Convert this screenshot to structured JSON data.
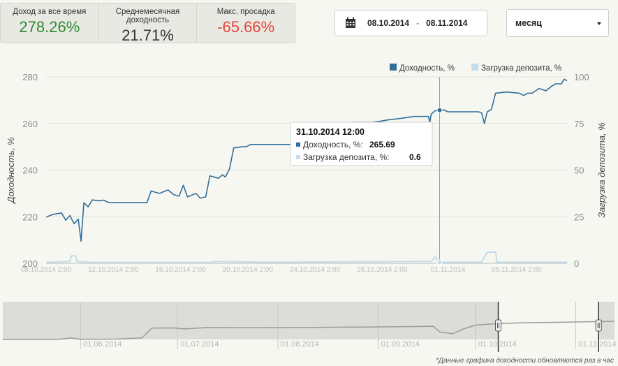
{
  "stats": [
    {
      "label": "Доход за все время",
      "value": "278.26%",
      "tone": "pos"
    },
    {
      "label": "Среднемесячная доходность",
      "value": "21.71%",
      "tone": "neu"
    },
    {
      "label": "Макс. просадка",
      "value": "-65.66%",
      "tone": "negv"
    }
  ],
  "date_range": {
    "start": "08.10.2014",
    "sep": "-",
    "end": "08.11.2014",
    "icon": "calendar-icon"
  },
  "period": {
    "selected": "месяц",
    "icon": "caret-down-icon"
  },
  "colors": {
    "yield": "#336e99",
    "load": "#c5dcea",
    "crosshair": "#4bb8d4",
    "positive": "#2f8a35",
    "negative": "#e0463a",
    "navigator": "#9a9a9a"
  },
  "chart_data": {
    "type": "line",
    "legend": [
      {
        "label": "Доходность, %",
        "color": "#336e99"
      },
      {
        "label": "Загрузка депозита, %",
        "color": "#c5dcea"
      }
    ],
    "legend_position": "top-right",
    "ylabel": "Доходность, %",
    "y2label": "Загрузка депозита, %",
    "ylim": [
      200,
      280
    ],
    "yticks": [
      200,
      220,
      240,
      260,
      280
    ],
    "y2lim": [
      0,
      100
    ],
    "y2ticks": [
      0,
      25,
      50,
      75,
      100
    ],
    "xlim": [
      "2014-10-08 02:00",
      "2014-11-08 02:00"
    ],
    "xticks": [
      "08.10.2014 2:00",
      "12.10.2014 2:00",
      "16.10.2014 2:00",
      "20.10.2014 2:00",
      "24.10.2014 2:00",
      "28.10.2014 2:00",
      "01.11.2014",
      "05.11.2014 2:00"
    ],
    "grid": true,
    "series": [
      {
        "name": "Доходность, %",
        "points": [
          [
            "2014-10-08 02:00",
            219.8
          ],
          [
            "2014-10-08 12:00",
            221.0
          ],
          [
            "2014-10-09 00:00",
            221.6
          ],
          [
            "2014-10-09 06:00",
            218.5
          ],
          [
            "2014-10-09 12:00",
            220.5
          ],
          [
            "2014-10-09 18:00",
            217.0
          ],
          [
            "2014-10-10 00:00",
            219.0
          ],
          [
            "2014-10-10 04:00",
            209.5
          ],
          [
            "2014-10-10 08:00",
            226.0
          ],
          [
            "2014-10-10 14:00",
            224.2
          ],
          [
            "2014-10-10 20:00",
            227.2
          ],
          [
            "2014-10-11 06:00",
            226.8
          ],
          [
            "2014-10-11 12:00",
            227.1
          ],
          [
            "2014-10-11 20:00",
            226.0
          ],
          [
            "2014-10-14 00:00",
            226.0
          ],
          [
            "2014-10-14 02:00",
            226.0
          ],
          [
            "2014-10-14 08:00",
            231.0
          ],
          [
            "2014-10-14 20:00",
            230.0
          ],
          [
            "2014-10-15 08:00",
            231.5
          ],
          [
            "2014-10-15 16:00",
            229.5
          ],
          [
            "2014-10-16 00:00",
            228.8
          ],
          [
            "2014-10-16 06:00",
            233.5
          ],
          [
            "2014-10-16 12:00",
            228.5
          ],
          [
            "2014-10-17 00:00",
            230.0
          ],
          [
            "2014-10-17 06:00",
            228.0
          ],
          [
            "2014-10-17 14:00",
            228.5
          ],
          [
            "2014-10-17 20:00",
            237.5
          ],
          [
            "2014-10-18 08:00",
            236.5
          ],
          [
            "2014-10-18 14:00",
            238.0
          ],
          [
            "2014-10-18 18:00",
            237.0
          ],
          [
            "2014-10-19 00:00",
            240.5
          ],
          [
            "2014-10-19 06:00",
            249.5
          ],
          [
            "2014-10-19 18:00",
            250.0
          ],
          [
            "2014-10-20 00:00",
            250.0
          ],
          [
            "2014-10-20 06:00",
            251.0
          ],
          [
            "2014-10-22 00:00",
            251.0
          ],
          [
            "2014-10-22 20:00",
            251.0
          ],
          [
            "2014-10-23 04:00",
            252.0
          ],
          [
            "2014-10-23 10:00",
            253.5
          ],
          [
            "2014-10-23 22:00",
            253.5
          ],
          [
            "2014-10-24 08:00",
            254.5
          ],
          [
            "2014-10-24 14:00",
            256.5
          ],
          [
            "2014-10-25 00:00",
            257.5
          ],
          [
            "2014-10-25 18:00",
            257.5
          ],
          [
            "2014-10-26 06:00",
            258.0
          ],
          [
            "2014-10-26 08:00",
            260.5
          ],
          [
            "2014-10-27 12:00",
            260.5
          ],
          [
            "2014-10-28 00:00",
            261.0
          ],
          [
            "2014-10-28 10:00",
            261.5
          ],
          [
            "2014-10-29 00:00",
            262.0
          ],
          [
            "2014-10-29 12:00",
            262.5
          ],
          [
            "2014-10-30 00:00",
            263.0
          ],
          [
            "2014-10-30 20:00",
            263.0
          ],
          [
            "2014-10-30 22:00",
            260.5
          ],
          [
            "2014-10-31 00:00",
            264.0
          ],
          [
            "2014-10-31 06:00",
            265.5
          ],
          [
            "2014-10-31 12:00",
            265.69
          ],
          [
            "2014-10-31 18:00",
            265.8
          ],
          [
            "2014-11-01 00:00",
            265.0
          ],
          [
            "2014-11-01 10:00",
            265.0
          ],
          [
            "2014-11-02 20:00",
            265.0
          ],
          [
            "2014-11-03 00:00",
            264.5
          ],
          [
            "2014-11-03 04:00",
            260.0
          ],
          [
            "2014-11-03 08:00",
            265.0
          ],
          [
            "2014-11-03 14:00",
            266.0
          ],
          [
            "2014-11-03 20:00",
            273.0
          ],
          [
            "2014-11-04 12:00",
            273.5
          ],
          [
            "2014-11-05 06:00",
            273.0
          ],
          [
            "2014-11-05 12:00",
            272.0
          ],
          [
            "2014-11-05 18:00",
            273.0
          ],
          [
            "2014-11-06 00:00",
            273.0
          ],
          [
            "2014-11-06 10:00",
            275.0
          ],
          [
            "2014-11-06 20:00",
            274.0
          ],
          [
            "2014-11-07 04:00",
            276.0
          ],
          [
            "2014-11-07 10:00",
            277.0
          ],
          [
            "2014-11-07 18:00",
            277.0
          ],
          [
            "2014-11-07 22:00",
            279.0
          ],
          [
            "2014-11-08 02:00",
            278.3
          ]
        ]
      },
      {
        "name": "Загрузка депозита, %",
        "points": [
          [
            "2014-10-08 02:00",
            0.5
          ],
          [
            "2014-10-09 12:00",
            1.0
          ],
          [
            "2014-10-09 14:00",
            4.0
          ],
          [
            "2014-10-09 20:00",
            4.0
          ],
          [
            "2014-10-09 22:00",
            1.0
          ],
          [
            "2014-10-11 00:00",
            0.5
          ],
          [
            "2014-10-18 00:00",
            0.5
          ],
          [
            "2014-10-18 02:00",
            1.0
          ],
          [
            "2014-10-21 00:00",
            0.6
          ],
          [
            "2014-10-31 00:00",
            1.0
          ],
          [
            "2014-10-31 06:00",
            3.5
          ],
          [
            "2014-10-31 10:00",
            0.6
          ],
          [
            "2014-10-31 12:00",
            0.6
          ],
          [
            "2014-11-03 00:00",
            0.6
          ],
          [
            "2014-11-03 08:00",
            6.0
          ],
          [
            "2014-11-03 20:00",
            6.0
          ],
          [
            "2014-11-03 22:00",
            0.6
          ],
          [
            "2014-11-08 02:00",
            0.6
          ]
        ]
      }
    ],
    "tooltip": {
      "title": "31.10.2014 12:00",
      "x": "2014-10-31 12:00",
      "rows": [
        {
          "label": "Доходность, %:",
          "value": "265.69",
          "color": "#336e99"
        },
        {
          "label": "Загрузка депозита, %:",
          "value": "0.6",
          "color": "#c5dcea"
        }
      ]
    },
    "navigator": {
      "xlim": [
        "2014-05-08",
        "2014-11-13"
      ],
      "ylim": [
        0,
        100
      ],
      "xticks": [
        "01.06.2014",
        "01.07.2014",
        "01.08.2014",
        "01.09.2014",
        "01.10.2014",
        "01.11.2014"
      ],
      "selection": [
        "2014-10-08 02:00",
        "2014-11-08 02:00"
      ],
      "points": [
        [
          "2014-05-08",
          0.0
        ],
        [
          "2014-05-25",
          0.0
        ],
        [
          "2014-05-29",
          4.0
        ],
        [
          "2014-06-01",
          0.5
        ],
        [
          "2014-06-12",
          1.0
        ],
        [
          "2014-06-20",
          4.0
        ],
        [
          "2014-06-23",
          30.0
        ],
        [
          "2014-06-30",
          30.5
        ],
        [
          "2014-07-03",
          28.0
        ],
        [
          "2014-07-10",
          31.5
        ],
        [
          "2014-07-23",
          31.0
        ],
        [
          "2014-08-12",
          32.0
        ],
        [
          "2014-08-28",
          33.0
        ],
        [
          "2014-09-10",
          34.0
        ],
        [
          "2014-09-18",
          35.0
        ],
        [
          "2014-09-20",
          20.0
        ],
        [
          "2014-09-24",
          15.0
        ],
        [
          "2014-09-27",
          27.0
        ],
        [
          "2014-10-01",
          38.0
        ],
        [
          "2014-10-08",
          42.0
        ],
        [
          "2014-10-15",
          44.0
        ],
        [
          "2014-10-22",
          45.0
        ],
        [
          "2014-10-29",
          46.0
        ],
        [
          "2014-11-05",
          47.0
        ],
        [
          "2014-11-13",
          48.0
        ]
      ]
    }
  },
  "footnote": "*Данные графика доходности обновляются раз в час"
}
